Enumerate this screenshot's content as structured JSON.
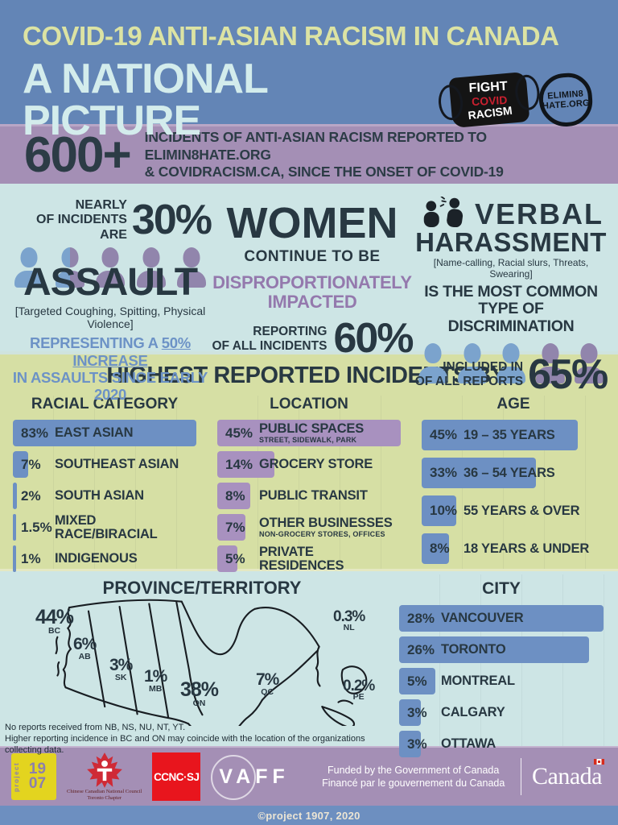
{
  "colors": {
    "header_blue": "#6385b6",
    "title_yellow": "#dce3a3",
    "title_cyan": "#d3ecec",
    "band_purple": "#a48fb5",
    "dark_slate": "#283842",
    "band_cyan": "#cde5e5",
    "band_yellowgreen": "#d6dfa4",
    "accent_purple": "#9479ad",
    "accent_blue": "#6c92c6",
    "bar_blue": "#6d90c3",
    "bar_purple": "#a891bf",
    "footer_blue": "#6d8fc0"
  },
  "header": {
    "title_line1": "COVID-19 ANTI-ASIAN RACISM IN CANADA",
    "title_line2": "A NATIONAL PICTURE",
    "mask_logo": {
      "line1": "FIGHT",
      "line2": "COVID",
      "line3": "RACISM"
    },
    "e8_logo": {
      "line1": "ELIMIN8",
      "line2": "HATE.ORG"
    }
  },
  "summary": {
    "count": "600+",
    "line1": "INCIDENTS OF ANTI-ASIAN RACISM REPORTED TO ELIMIN8HATE.ORG",
    "line2": "& COVIDRACISM.CA, SINCE THE ONSET OF COVID-19"
  },
  "stats": {
    "assault": {
      "lead_small1": "NEARLY",
      "lead_small2": "OF INCIDENTS ARE",
      "pct": "30%",
      "keyword": "ASSAULT",
      "definition": "[Targeted Coughing, Spitting, Physical Violence]",
      "note_pre": "REPRESENTING A ",
      "note_underline": "50% INCREASE",
      "note_post": "IN ASSAULTS SINCE EARLY 2020"
    },
    "women": {
      "keyword": "WOMEN",
      "continue": "CONTINUE TO BE",
      "accent1": "DISPROPORTIONATELY",
      "accent2": "IMPACTED",
      "small1": "REPORTING",
      "small2": "OF ALL INCIDENTS",
      "pct": "60%"
    },
    "verbal": {
      "keyword1": "VERBAL",
      "keyword2": "HARASSMENT",
      "definition": "[Name-calling, Racial slurs, Threats, Swearing]",
      "line1": "IS THE MOST COMMON",
      "line2": "TYPE OF DISCRIMINATION",
      "small1": "INCLUDED IN",
      "small2": "OF ALL REPORTS",
      "pct": "65%"
    }
  },
  "charts_section_title": "HIGHEST REPORTED INCIDENTS BY:",
  "chart_data": [
    {
      "id": "racial",
      "type": "bar",
      "title": "RACIAL CATEGORY",
      "bar_color": "#6d90c3",
      "scale_max": 83,
      "categories": [
        "EAST ASIAN",
        "SOUTHEAST ASIAN",
        "SOUTH ASIAN",
        "MIXED RACE/BIRACIAL",
        "INDIGENOUS"
      ],
      "values": [
        83,
        7,
        2,
        1.5,
        1
      ],
      "value_labels": [
        "83%",
        "7%",
        "2%",
        "1.5%",
        "1%"
      ]
    },
    {
      "id": "location",
      "type": "bar",
      "title": "LOCATION",
      "bar_color": "#a891bf",
      "scale_max": 45,
      "categories": [
        "PUBLIC SPACES",
        "GROCERY STORE",
        "PUBLIC TRANSIT",
        "OTHER BUSINESSES",
        "PRIVATE RESIDENCES"
      ],
      "values": [
        45,
        14,
        8,
        7,
        5
      ],
      "value_labels": [
        "45%",
        "14%",
        "8%",
        "7%",
        "5%"
      ],
      "sublabels": [
        "STREET, SIDEWALK, PARK",
        "",
        "",
        "NON-GROCERY STORES, OFFICES",
        ""
      ]
    },
    {
      "id": "age",
      "type": "bar",
      "title": "AGE",
      "bar_color": "#6d90c3",
      "scale_max": 53,
      "categories": [
        "19 – 35 YEARS",
        "36 – 54 YEARS",
        "55 YEARS & OVER",
        "18 YEARS & UNDER"
      ],
      "values": [
        45,
        33,
        10,
        8
      ],
      "value_labels": [
        "45%",
        "33%",
        "10%",
        "8%"
      ]
    },
    {
      "id": "city",
      "type": "bar",
      "title": "CITY",
      "bar_color": "#6d90c3",
      "scale_max": 28,
      "categories": [
        "VANCOUVER",
        "TORONTO",
        "MONTREAL",
        "CALGARY",
        "OTTAWA"
      ],
      "values": [
        28,
        26,
        5,
        3,
        3
      ],
      "value_labels": [
        "28%",
        "26%",
        "5%",
        "3%",
        "3%"
      ]
    },
    {
      "id": "province",
      "type": "map",
      "title": "PROVINCE/TERRITORY",
      "regions": [
        "BC",
        "AB",
        "SK",
        "MB",
        "ON",
        "QC",
        "NL",
        "PE"
      ],
      "values": [
        44,
        6,
        3,
        1,
        38,
        7,
        0.3,
        0.2
      ],
      "value_labels": [
        "44%",
        "6%",
        "3%",
        "1%",
        "38%",
        "7%",
        "0.3%",
        "0.2%"
      ],
      "footnote1": "No reports received from NB, NS, NU, NT, YT.",
      "footnote2": "Higher reporting incidence in BC and ON may coincide with the location of the organizations collecting data."
    }
  ],
  "footer": {
    "p1907": {
      "vertical": "project",
      "num1": "19",
      "num2": "07"
    },
    "ccnc": {
      "line1": "Chinese Canadian National Council",
      "line2": "Toronto Chapter"
    },
    "ccncsj": "CCNC·SJ",
    "vaff": "VAFF",
    "funded_en": "Funded by the Government of Canada",
    "funded_fr": "Financé par le gouvernement du Canada",
    "canada_part1": "Canad",
    "canada_part2": "a"
  },
  "copyright": "©project 1907, 2020"
}
